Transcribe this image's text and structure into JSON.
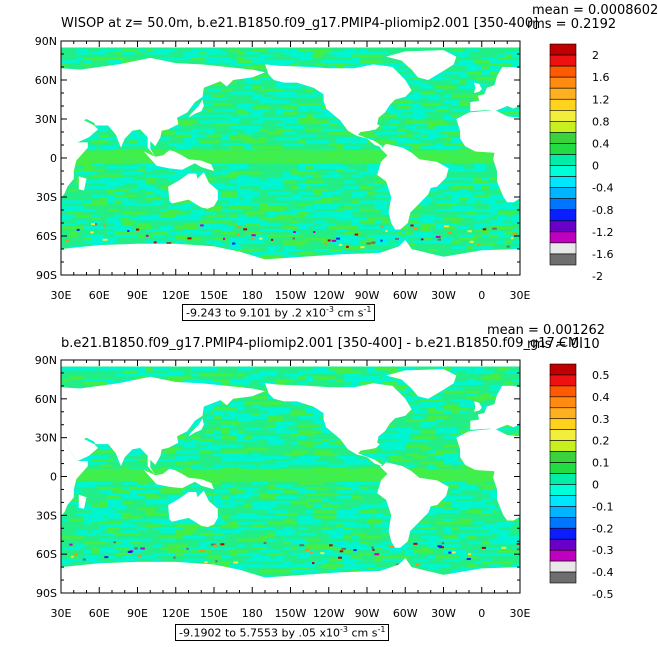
{
  "panels": [
    {
      "title": "WISOP at z=  50.0m, b.e21.B1850.f09_g17.PMIP4-pliomip2.001 [350-400]",
      "mean": "mean = 0.0008602",
      "rms": "rms = 0.2192",
      "range_text": "-9.243 to 9.101 by .2 x10",
      "range_exp": "-3",
      "range_units": " cm s",
      "range_units_exp": "-1",
      "lat_labels": [
        "90N",
        "60N",
        "30N",
        "0",
        "30S",
        "60S",
        "90S"
      ],
      "lon_labels": [
        "30E",
        "60E",
        "90E",
        "120E",
        "150E",
        "180",
        "150W",
        "120W",
        "90W",
        "60W",
        "30W",
        "0",
        "30E"
      ],
      "colorbar_labels": [
        "2",
        "1.6",
        "1.2",
        "0.8",
        "0.4",
        "0",
        "-0.4",
        "-0.8",
        "-1.2",
        "-1.6",
        "-2"
      ]
    },
    {
      "title": "b.e21.B1850.f09_g17.PMIP4-pliomip2.001 [350-400] - b.e21.B1850.f09_g17.CMI",
      "mean": "mean = 0.001262",
      "rms": "rms = 0.10",
      "range_text": "-9.1902 to 5.7553 by .05 x10",
      "range_exp": "-3",
      "range_units": " cm s",
      "range_units_exp": "-1",
      "lat_labels": [
        "90N",
        "60N",
        "30N",
        "0",
        "30S",
        "60S",
        "90S"
      ],
      "lon_labels": [
        "30E",
        "60E",
        "90E",
        "120E",
        "150E",
        "180",
        "150W",
        "120W",
        "90W",
        "60W",
        "30W",
        "0",
        "30E"
      ],
      "colorbar_labels": [
        "0.5",
        "0.4",
        "0.3",
        "0.2",
        "0.1",
        "0",
        "-0.1",
        "-0.2",
        "-0.3",
        "-0.4",
        "-0.5"
      ]
    }
  ],
  "colorbar_colors": [
    "#c00000",
    "#ee1111",
    "#ff5a00",
    "#ff8c10",
    "#ffb020",
    "#ffd21e",
    "#f3ee3c",
    "#c8f01e",
    "#3cd23c",
    "#22dc44",
    "#00eea6",
    "#00ffd8",
    "#00e6ff",
    "#00b4ff",
    "#0076ff",
    "#0a1eff",
    "#6a00c8",
    "#c000c0",
    "#e8e8e8",
    "#6e6e6e"
  ],
  "field_colors": {
    "ocean_main": "#22ee88",
    "ocean_alt": "#44ee44",
    "ocean_neg": "#00f5d2",
    "land": "#ffffff"
  }
}
